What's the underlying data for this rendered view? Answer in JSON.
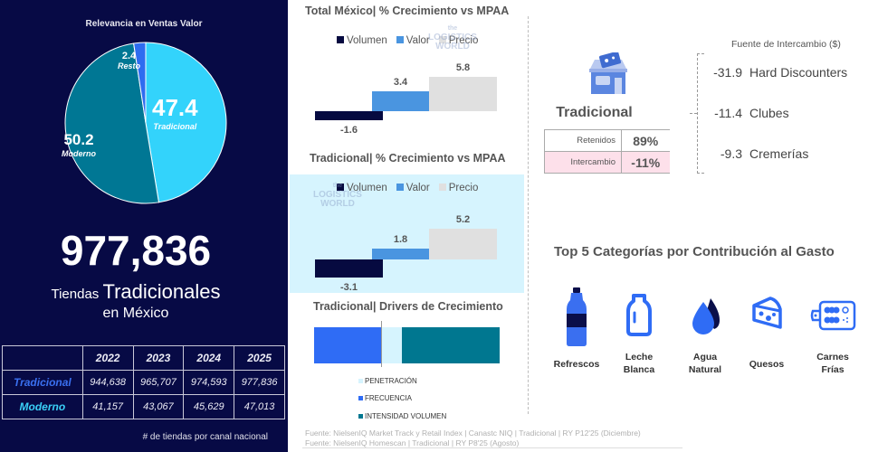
{
  "left_panel": {
    "pie_title": "Relevancia en Ventas Valor",
    "pie": [
      {
        "name": "Tradicional",
        "value": 47.4,
        "label": "47.4",
        "color": "#33d3fb"
      },
      {
        "name": "Moderno",
        "value": 50.2,
        "label": "50.2",
        "color": "#007794"
      },
      {
        "name": "Resto",
        "value": 2.4,
        "label": "2.4",
        "color": "#2e6cf0"
      }
    ],
    "big_number": "977,836",
    "subtitle_small": "Tiendas",
    "subtitle_big": "Tradicionales",
    "subtitle_line2": "en México",
    "table": {
      "headers": [
        "",
        "2022",
        "2023",
        "2024",
        "2025"
      ],
      "rows": [
        {
          "label": "Tradicional",
          "values": [
            "944,638",
            "965,707",
            "974,593",
            "977,836"
          ]
        },
        {
          "label": "Moderno",
          "values": [
            "41,157",
            "43,067",
            "45,629",
            "47,013"
          ]
        }
      ],
      "note": "# de tiendas por canal nacional"
    }
  },
  "chart_data": [
    {
      "type": "bar",
      "title": "Total México| % Crecimiento vs MPAA",
      "categories": [
        "Volumen",
        "Valor",
        "Precio"
      ],
      "values": [
        -1.6,
        3.4,
        5.8
      ],
      "labels": [
        "-1.6",
        "3.4",
        "5.8"
      ],
      "colors": [
        "#060a40",
        "#4a95e0",
        "#e0e0e0"
      ],
      "legend": [
        "Volumen",
        "Valor",
        "Precio"
      ]
    },
    {
      "type": "bar",
      "title": "Tradicional| % Crecimiento vs MPAA",
      "categories": [
        "Volumen",
        "Valor",
        "Precio"
      ],
      "values": [
        -3.1,
        1.8,
        5.2
      ],
      "labels": [
        "-3.1",
        "1.8",
        "5.2"
      ],
      "colors": [
        "#060a40",
        "#4a95e0",
        "#e0e0e0"
      ],
      "legend": [
        "Volumen",
        "Valor",
        "Precio"
      ]
    },
    {
      "type": "bar",
      "title": "Tradicional| Drivers de Crecimiento",
      "categories": [
        "FRECUENCIA",
        "PENETRACIÓN",
        "INTENSIDAD VOLUMEN"
      ],
      "series": [
        {
          "name": "FRECUENCIA",
          "value": -3.6,
          "color": "#2f6cf5"
        },
        {
          "name": "PENETRACIÓN",
          "value": 1.1,
          "color": "#d6f4fe"
        },
        {
          "name": "INTENSIDAD VOLUMEN",
          "value": 5.3,
          "color": "#007790"
        }
      ],
      "legend": [
        "PENETRACIÓN",
        "FRECUENCIA",
        "INTENSIDAD VOLUMEN"
      ]
    }
  ],
  "sources": [
    "Fuente: NielsenIQ Market Track y Retail Index | Canastc NIQ | Tradicional | RY P12'25 (Diciembre)",
    "Fuente: NielsenIQ Homescan | Tradicional | RY P8'25 (Agosto)"
  ],
  "retention": {
    "channel": "Tradicional",
    "rows": [
      {
        "label": "Retenidos",
        "value": "89%"
      },
      {
        "label": "Intercambio",
        "value": "-11%"
      }
    ]
  },
  "exchange": {
    "title": "Fuente de Intercambio ($)",
    "items": [
      {
        "value": "-31.9",
        "name": "Hard Discounters"
      },
      {
        "value": "-11.4",
        "name": "Clubes"
      },
      {
        "value": "-9.3",
        "name": "Cremerías"
      }
    ]
  },
  "top5": {
    "title": "Top 5 Categorías por Contribución al Gasto",
    "items": [
      {
        "icon": "soda-bottle-icon",
        "line1": "Refrescos",
        "line2": ""
      },
      {
        "icon": "milk-bottle-icon",
        "line1": "Leche",
        "line2": "Blanca"
      },
      {
        "icon": "water-drop-icon",
        "line1": "Agua",
        "line2": "Natural"
      },
      {
        "icon": "cheese-icon",
        "line1": "Quesos",
        "line2": ""
      },
      {
        "icon": "cold-cuts-board-icon",
        "line1": "Carnes",
        "line2": "Frías"
      }
    ]
  },
  "watermark": [
    "the",
    "LOGISTICS",
    "WORLD"
  ]
}
